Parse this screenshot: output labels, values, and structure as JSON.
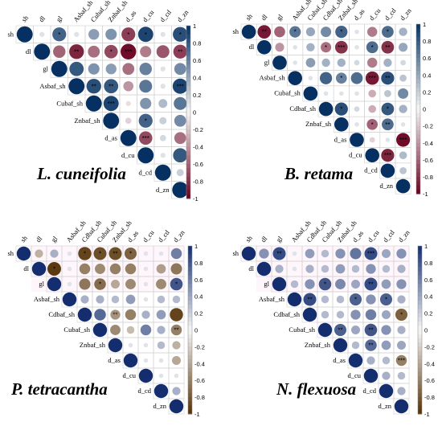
{
  "chart_data": [
    {
      "type": "heatmap",
      "subtype": "correlogram-upper-triangle",
      "title": "L. cuneifolia",
      "colorscale": "red-white-blue",
      "colorbar_ticks": [
        "1",
        "0.8",
        "0.6",
        "0.4",
        "0.2",
        "0",
        "-0.2",
        "-0.4",
        "-0.6",
        "-0.8",
        "-1"
      ],
      "clim": [
        -1,
        1
      ],
      "variables": [
        "sh",
        "dl",
        "gl",
        "Asbaf_sh",
        "Cubaf_sh",
        "Znbaf_sh",
        "d_as",
        "d_cu",
        "d_cd",
        "d_zn"
      ],
      "matrix": [
        [
          1,
          0.1,
          0.75,
          0.1,
          0.45,
          0.5,
          -0.75,
          0.9,
          0.1,
          0.85
        ],
        [
          null,
          1,
          -0.6,
          -0.85,
          -0.55,
          -0.7,
          -0.95,
          -0.5,
          -0.65,
          -0.75
        ],
        [
          null,
          null,
          1,
          0.8,
          0.5,
          0.45,
          -0.55,
          0.6,
          0.1,
          0.55
        ],
        [
          null,
          null,
          null,
          1,
          0.85,
          0.8,
          -0.4,
          0.65,
          0.1,
          0.9
        ],
        [
          null,
          null,
          null,
          null,
          1,
          0.9,
          -0.1,
          0.5,
          0.3,
          0.65
        ],
        [
          null,
          null,
          null,
          null,
          null,
          1,
          -0.15,
          0.75,
          0.2,
          0.55
        ],
        [
          null,
          null,
          null,
          null,
          null,
          null,
          1,
          -0.7,
          0.15,
          -0.55
        ],
        [
          null,
          null,
          null,
          null,
          null,
          null,
          null,
          1,
          0.1,
          0.8
        ],
        [
          null,
          null,
          null,
          null,
          null,
          null,
          null,
          null,
          1,
          0.2
        ],
        [
          null,
          null,
          null,
          null,
          null,
          null,
          null,
          null,
          null,
          1
        ]
      ],
      "significance": [
        [
          "",
          "",
          "*",
          "",
          "",
          "",
          "*",
          "*",
          "",
          "*"
        ],
        [
          "",
          "",
          "",
          "**",
          "",
          "*",
          "***",
          "",
          "",
          "**"
        ],
        [
          "",
          "",
          "",
          "",
          "",
          "",
          "",
          "",
          "",
          ""
        ],
        [
          "",
          "",
          "",
          "",
          "**",
          "**",
          "",
          "",
          "",
          "***"
        ],
        [
          "",
          "",
          "",
          "",
          "",
          "***",
          "",
          "",
          "",
          ""
        ],
        [
          "",
          "",
          "",
          "",
          "",
          "",
          "",
          "*",
          "",
          ""
        ],
        [
          "",
          "",
          "",
          "",
          "",
          "",
          "",
          "***",
          "",
          ""
        ],
        [
          "",
          "",
          "",
          "",
          "",
          "",
          "",
          "",
          "",
          ""
        ],
        [
          "",
          "",
          "",
          "",
          "",
          "",
          "",
          "",
          "",
          ""
        ],
        [
          "",
          "",
          "",
          "",
          "",
          "",
          "",
          "",
          "",
          ""
        ]
      ]
    },
    {
      "type": "heatmap",
      "subtype": "correlogram-upper-triangle",
      "title": "B. retama",
      "colorscale": "red-white-blue",
      "colorbar_ticks": [
        "1",
        "0.8",
        "0.6",
        "0.4",
        "0.2",
        "0",
        "-0.2",
        "-0.4",
        "-0.6",
        "-0.8",
        "-1"
      ],
      "clim": [
        -1,
        1
      ],
      "variables": [
        "sh",
        "dl",
        "gl",
        "Asbaf_sh",
        "Cubaf_sh",
        "Cdbaf_sh",
        "Znbaf_sh",
        "d_as",
        "d_cu",
        "d_cd",
        "d_zn"
      ],
      "matrix": [
        [
          1,
          -0.9,
          -0.6,
          0.65,
          0.4,
          0.55,
          0.75,
          0.1,
          -0.5,
          0.7,
          0.35
        ],
        [
          null,
          1,
          -0.4,
          0.1,
          0.35,
          -0.55,
          -0.8,
          0.1,
          0.7,
          -0.8,
          0.4
        ],
        [
          null,
          null,
          1,
          0.1,
          0.45,
          0.35,
          0.35,
          0.15,
          -0.5,
          0.35,
          0.15
        ],
        [
          null,
          null,
          null,
          1,
          0.1,
          0.75,
          0.6,
          0.7,
          -0.9,
          0.85,
          0.25
        ],
        [
          null,
          null,
          null,
          null,
          1,
          0.1,
          0.1,
          0.1,
          -0.3,
          0.25,
          0.55
        ],
        [
          null,
          null,
          null,
          null,
          null,
          1,
          0.85,
          0.15,
          -0.3,
          0.8,
          0.35
        ],
        [
          null,
          null,
          null,
          null,
          null,
          null,
          1,
          0.1,
          -0.6,
          0.7,
          0.1
        ],
        [
          null,
          null,
          null,
          null,
          null,
          null,
          null,
          1,
          -0.15,
          0.1,
          -0.95
        ],
        [
          null,
          null,
          null,
          null,
          null,
          null,
          null,
          null,
          1,
          -0.85,
          0.3
        ],
        [
          null,
          null,
          null,
          null,
          null,
          null,
          null,
          null,
          null,
          1,
          0.25
        ],
        [
          null,
          null,
          null,
          null,
          null,
          null,
          null,
          null,
          null,
          null,
          1
        ]
      ],
      "significance": [
        [
          "",
          "**",
          "",
          "*",
          "",
          "",
          "*",
          "",
          "",
          "*",
          ""
        ],
        [
          "",
          "",
          "",
          "",
          "",
          "*",
          "***",
          "",
          "*",
          "**",
          ""
        ],
        [
          "",
          "",
          "",
          "",
          "",
          "",
          "",
          "",
          "",
          "",
          ""
        ],
        [
          "",
          "",
          "",
          "",
          "",
          "",
          "*",
          "",
          "***",
          "**",
          ""
        ],
        [
          "",
          "",
          "",
          "",
          "",
          "",
          "",
          "",
          "",
          "",
          ""
        ],
        [
          "",
          "",
          "",
          "",
          "",
          "",
          "*",
          "",
          "",
          "*",
          ""
        ],
        [
          "",
          "",
          "",
          "",
          "",
          "",
          "",
          "",
          "*",
          "**",
          ""
        ],
        [
          "",
          "",
          "",
          "",
          "",
          "",
          "",
          "",
          "",
          "",
          "***"
        ],
        [
          "",
          "",
          "",
          "",
          "",
          "",
          "",
          "",
          "",
          "***",
          ""
        ],
        [
          "",
          "",
          "",
          "",
          "",
          "",
          "",
          "",
          "",
          "",
          ""
        ],
        [
          "",
          "",
          "",
          "",
          "",
          "",
          "",
          "",
          "",
          "",
          ""
        ]
      ]
    },
    {
      "type": "heatmap",
      "subtype": "correlogram-upper-triangle",
      "title": "P. tetracantha",
      "colorscale": "brown-white-blue",
      "colorbar_ticks": [
        "1",
        "0.8",
        "0.6",
        "0.4",
        "0.2",
        "0",
        "-0.2",
        "-0.4",
        "-0.6",
        "-0.8",
        "-1"
      ],
      "clim": [
        -1,
        1
      ],
      "variables": [
        "sh",
        "dl",
        "gl",
        "Asbaf_sh",
        "Cdbaf_sh",
        "Cubaf_sh",
        "Znbaf_sh",
        "d_as",
        "d_cu",
        "d_cd",
        "d_zn"
      ],
      "matrix": [
        [
          1,
          -0.35,
          0.35,
          0.1,
          -0.9,
          -0.85,
          -0.85,
          -0.75,
          0.1,
          0.1,
          0.6
        ],
        [
          null,
          1,
          -0.95,
          0.1,
          -0.6,
          -0.55,
          -0.6,
          -0.6,
          0.1,
          -0.45,
          -0.65
        ],
        [
          null,
          null,
          1,
          0.1,
          -0.65,
          -0.7,
          -0.4,
          -0.55,
          0.1,
          -0.55,
          0.8
        ],
        [
          null,
          null,
          null,
          1,
          0.35,
          0.35,
          0.3,
          0.45,
          0.1,
          0.3,
          0.3
        ],
        [
          null,
          null,
          null,
          null,
          1,
          0.7,
          -0.5,
          -0.6,
          0.35,
          0.45,
          -0.9
        ],
        [
          null,
          null,
          null,
          null,
          null,
          1,
          -0.55,
          -0.3,
          0.6,
          0.35,
          -0.6
        ],
        [
          null,
          null,
          null,
          null,
          null,
          null,
          1,
          0.1,
          0.1,
          0.3,
          -0.35
        ],
        [
          null,
          null,
          null,
          null,
          null,
          null,
          null,
          1,
          0.1,
          0.1,
          -0.4
        ],
        [
          null,
          null,
          null,
          null,
          null,
          null,
          null,
          null,
          1,
          0.1,
          0.1
        ],
        [
          null,
          null,
          null,
          null,
          null,
          null,
          null,
          null,
          null,
          1,
          0.35
        ],
        [
          null,
          null,
          null,
          null,
          null,
          null,
          null,
          null,
          null,
          null,
          1
        ]
      ],
      "significance": [
        [
          "",
          "",
          "",
          "",
          "*",
          "*",
          "**",
          "*",
          "",
          "",
          ""
        ],
        [
          "",
          "",
          "*",
          "",
          "",
          "",
          "",
          "",
          "",
          "",
          ""
        ],
        [
          "",
          "",
          "",
          "",
          "",
          "*",
          "",
          "",
          "",
          "",
          "*"
        ],
        [
          "",
          "",
          "",
          "",
          "",
          "",
          "",
          "",
          "",
          "",
          ""
        ],
        [
          "",
          "",
          "",
          "",
          "",
          "",
          "**",
          "",
          "",
          "",
          ""
        ],
        [
          "",
          "",
          "",
          "",
          "",
          "",
          "",
          "",
          "",
          "",
          "**"
        ],
        [
          "",
          "",
          "",
          "",
          "",
          "",
          "",
          "",
          "",
          "",
          ""
        ],
        [
          "",
          "",
          "",
          "",
          "",
          "",
          "",
          "",
          "",
          "",
          ""
        ],
        [
          "",
          "",
          "",
          "",
          "",
          "",
          "",
          "",
          "",
          "",
          ""
        ],
        [
          "",
          "",
          "",
          "",
          "",
          "",
          "",
          "",
          "",
          "",
          ""
        ],
        [
          "",
          "",
          "",
          "",
          "",
          "",
          "",
          "",
          "",
          "",
          ""
        ]
      ]
    },
    {
      "type": "heatmap",
      "subtype": "correlogram-upper-triangle",
      "title": "N. flexuosa",
      "colorscale": "brown-white-blue",
      "colorbar_ticks": [
        "1",
        "0.8",
        "0.6",
        "0.4",
        "0.2",
        "0",
        "-0.2",
        "-0.4",
        "-0.6",
        "-0.8",
        "-1"
      ],
      "clim": [
        -1,
        1
      ],
      "variables": [
        "sh",
        "dl",
        "gl",
        "Asbaf_sh",
        "Cdbaf_sh",
        "Cubaf_sh",
        "Znbaf_sh",
        "d_as",
        "d_cu",
        "d_cd",
        "d_zn"
      ],
      "matrix": [
        [
          1,
          0.5,
          0.85,
          0.1,
          0.45,
          0.3,
          0.5,
          0.65,
          0.85,
          0.4,
          0.5
        ],
        [
          null,
          1,
          0.35,
          0.1,
          0.35,
          0.3,
          0.45,
          0.3,
          0.5,
          0.3,
          0.35
        ],
        [
          null,
          null,
          1,
          0.3,
          0.5,
          0.8,
          0.55,
          0.4,
          0.85,
          0.45,
          0.5
        ],
        [
          null,
          null,
          null,
          1,
          0.85,
          0.3,
          0.3,
          0.75,
          0.5,
          0.75,
          0.35
        ],
        [
          null,
          null,
          null,
          null,
          1,
          0.3,
          0.3,
          0.5,
          0.6,
          0.4,
          -0.75
        ],
        [
          null,
          null,
          null,
          null,
          null,
          1,
          0.75,
          0.4,
          0.8,
          0.5,
          0.35
        ],
        [
          null,
          null,
          null,
          null,
          null,
          null,
          1,
          0.3,
          0.7,
          0.45,
          0.4
        ],
        [
          null,
          null,
          null,
          null,
          null,
          null,
          null,
          1,
          0.35,
          0.3,
          -0.6
        ],
        [
          null,
          null,
          null,
          null,
          null,
          null,
          null,
          null,
          1,
          0.35,
          0.3
        ],
        [
          null,
          null,
          null,
          null,
          null,
          null,
          null,
          null,
          null,
          1,
          0.35
        ],
        [
          null,
          null,
          null,
          null,
          null,
          null,
          null,
          null,
          null,
          null,
          1
        ]
      ],
      "significance": [
        [
          "",
          "",
          "**",
          "",
          "",
          "",
          "",
          "",
          "***",
          "",
          ""
        ],
        [
          "",
          "",
          "",
          "",
          "",
          "",
          "",
          "",
          "",
          "",
          ""
        ],
        [
          "",
          "",
          "",
          "",
          "",
          "*",
          "",
          "",
          "**",
          "",
          ""
        ],
        [
          "",
          "",
          "",
          "",
          "**",
          "",
          "",
          "*",
          "",
          "*",
          ""
        ],
        [
          "",
          "",
          "",
          "",
          "",
          "",
          "",
          "",
          "",
          "",
          "*"
        ],
        [
          "",
          "",
          "",
          "",
          "",
          "",
          "**",
          "",
          "**",
          "",
          ""
        ],
        [
          "",
          "",
          "",
          "",
          "",
          "",
          "",
          "",
          "**",
          "",
          ""
        ],
        [
          "",
          "",
          "",
          "",
          "",
          "",
          "",
          "",
          "",
          "",
          "***"
        ],
        [
          "",
          "",
          "",
          "",
          "",
          "",
          "",
          "",
          "",
          "",
          ""
        ],
        [
          "",
          "",
          "",
          "",
          "",
          "",
          "",
          "",
          "",
          "",
          ""
        ],
        [
          "",
          "",
          "",
          "",
          "",
          "",
          "",
          "",
          "",
          "",
          ""
        ]
      ]
    }
  ]
}
